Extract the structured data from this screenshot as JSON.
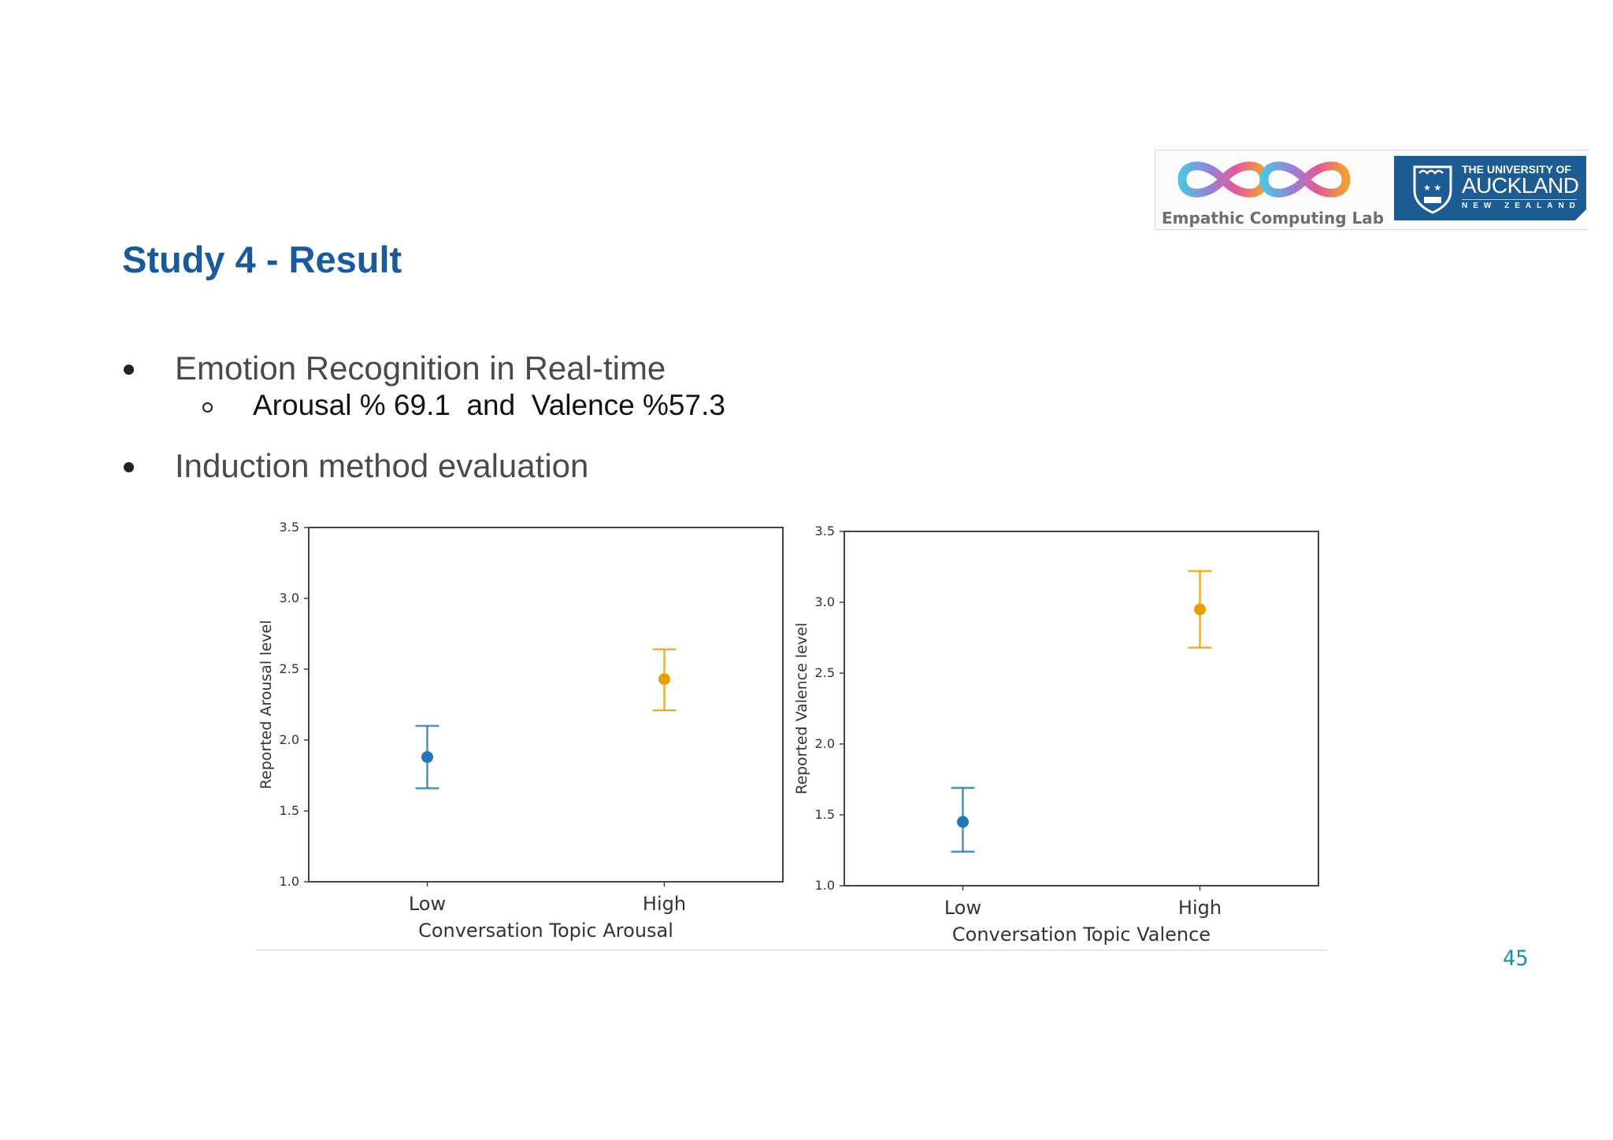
{
  "logos": {
    "lab_name": "Empathic Computing Lab",
    "university": {
      "line1": "THE UNIVERSITY OF",
      "line2": "AUCKLAND",
      "line3": "NEW ZEALAND"
    }
  },
  "slide": {
    "title": "Study 4 - Result",
    "bullets": [
      {
        "text": "Emotion Recognition in Real-time",
        "sub": "Arousal % 69.1  and  Valence %57.3"
      },
      {
        "text": "Induction method evaluation"
      }
    ],
    "page_number": "45"
  },
  "colors": {
    "title": "#1b5a9a",
    "low": "#1f77b4",
    "high": "#e69f00",
    "page_number": "#1a8fa8"
  },
  "chart_data": [
    {
      "type": "scatter",
      "xlabel": "Conversation Topic Arousal",
      "ylabel": "Reported Arousal level",
      "categories": [
        "Low",
        "High"
      ],
      "values": [
        1.88,
        2.43
      ],
      "error_low": [
        1.66,
        2.21
      ],
      "error_high": [
        2.1,
        2.64
      ],
      "ylim": [
        1.0,
        3.5
      ],
      "yticks": [
        "1.0",
        "1.5",
        "2.0",
        "2.5",
        "3.0",
        "3.5"
      ],
      "grid": false
    },
    {
      "type": "scatter",
      "xlabel": "Conversation Topic Valence",
      "ylabel": "Reported Valence level",
      "categories": [
        "Low",
        "High"
      ],
      "values": [
        1.45,
        2.95
      ],
      "error_low": [
        1.24,
        2.68
      ],
      "error_high": [
        1.69,
        3.22
      ],
      "ylim": [
        1.0,
        3.5
      ],
      "yticks": [
        "1.0",
        "1.5",
        "2.0",
        "2.5",
        "3.0",
        "3.5"
      ],
      "grid": false
    }
  ]
}
